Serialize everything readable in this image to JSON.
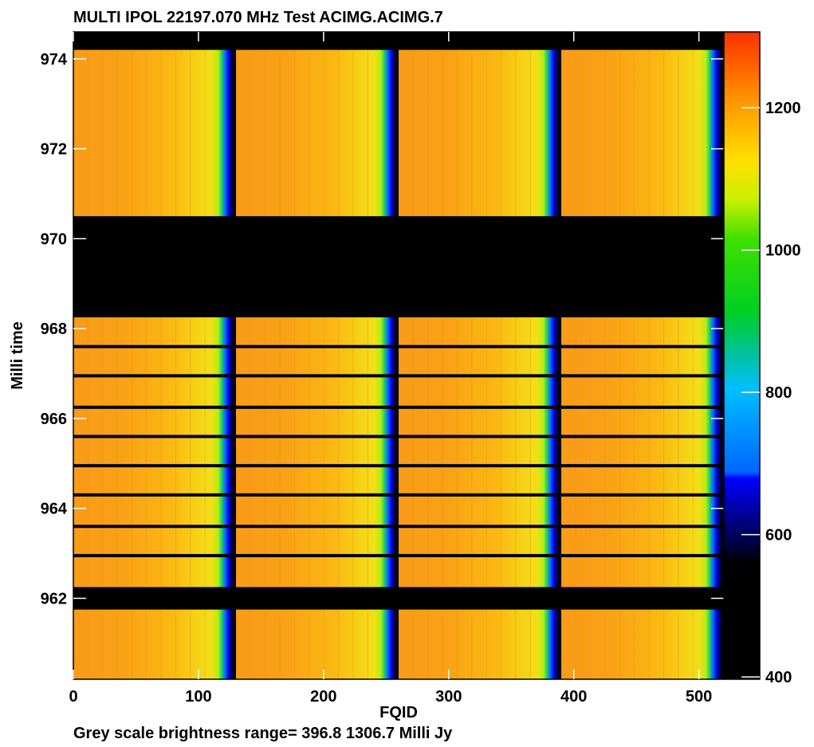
{
  "chart_data": {
    "type": "heatmap",
    "title": "MULTI  IPOL  22197.070 MHz  Test ACIMG.ACIMG.7",
    "xlabel": "FQID",
    "ylabel": "Milli time",
    "footer": "Grey scale brightness range= 396.8 1306.7 Milli Jy",
    "xlim": [
      0,
      520
    ],
    "ylim": [
      960.2,
      974.6
    ],
    "x_ticks": [
      0,
      100,
      200,
      300,
      400,
      500
    ],
    "x_tick_labels": [
      "0",
      "100",
      "200",
      "300",
      "400",
      "500"
    ],
    "y_ticks": [
      962,
      964,
      966,
      968,
      970,
      972,
      974
    ],
    "y_tick_labels": [
      "962",
      "964",
      "966",
      "968",
      "970",
      "972",
      "974"
    ],
    "colorbar": {
      "range": [
        396.8,
        1306.7
      ],
      "ticks": [
        400,
        600,
        800,
        1000,
        1200
      ],
      "tick_labels": [
        "400",
        "600",
        "800",
        "1000",
        "1200"
      ]
    },
    "channel_boundaries": [
      0,
      130,
      260,
      390,
      520
    ],
    "low_value_columns_near": [
      122,
      252,
      382,
      512
    ],
    "flagged_time_ranges": [
      [
        974.2,
        974.6
      ],
      [
        968.25,
        970.5
      ],
      [
        961.75,
        962.25
      ]
    ],
    "flagged_time_lines": [
      967.6,
      966.95,
      966.25,
      965.6,
      964.95,
      964.3,
      963.6,
      962.95
    ]
  }
}
